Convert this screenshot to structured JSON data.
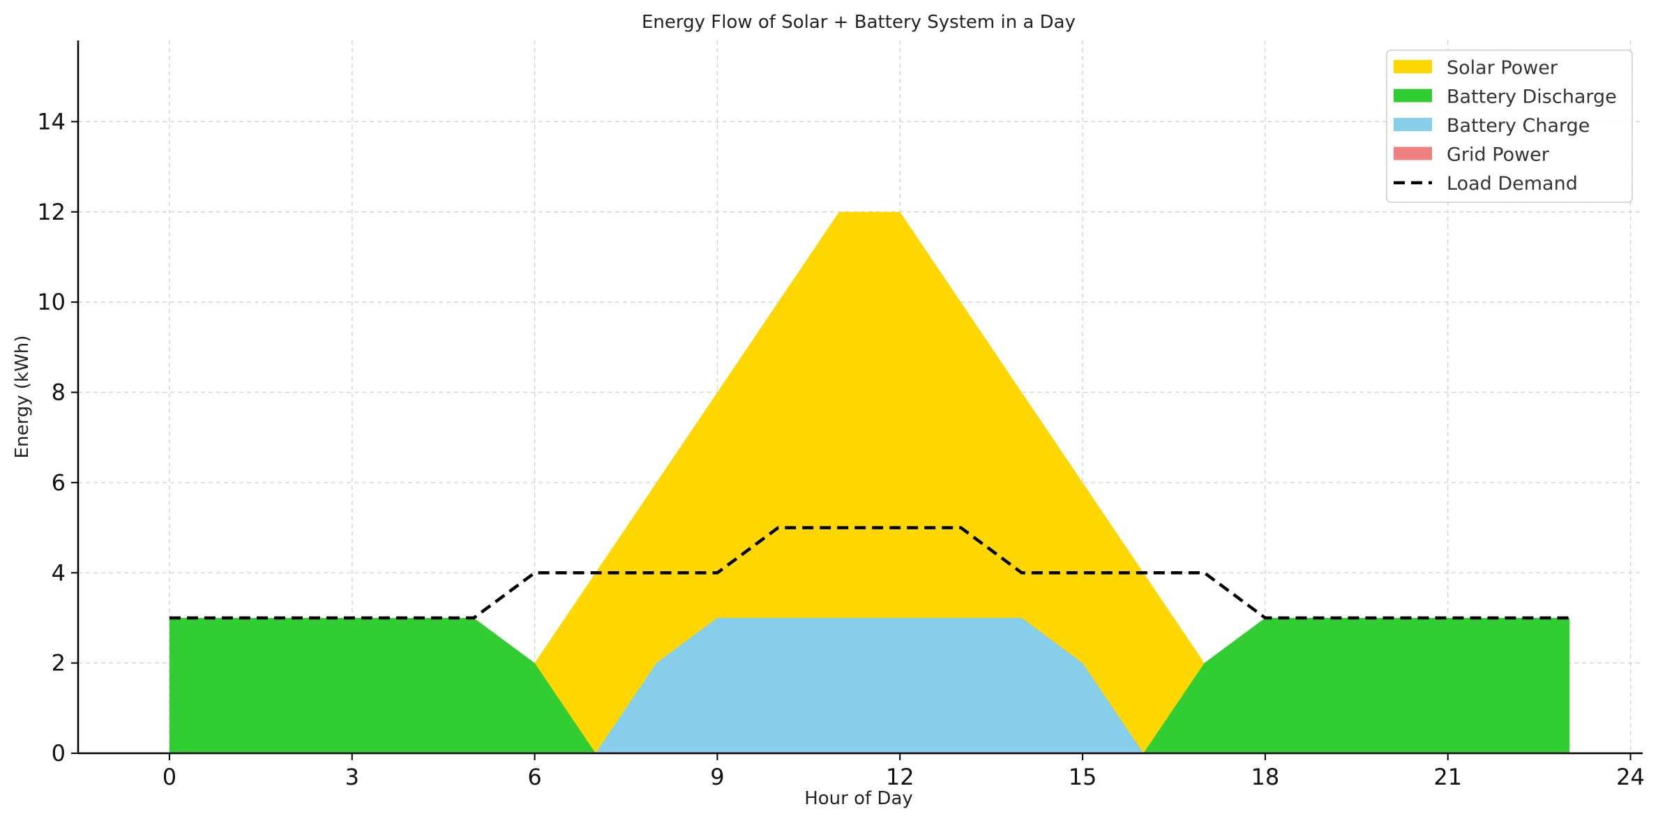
{
  "chart_data": {
    "type": "area",
    "title": "Energy Flow of Solar + Battery System in a Day",
    "xlabel": "Hour of Day",
    "ylabel": "Energy (kWh)",
    "xlim": [
      -1.5,
      24.2
    ],
    "ylim": [
      0,
      15.8
    ],
    "xticks": [
      0,
      3,
      6,
      9,
      12,
      15,
      18,
      21,
      24
    ],
    "yticks": [
      0,
      2,
      4,
      6,
      8,
      10,
      12,
      14
    ],
    "grid": true,
    "legend_position": "top-right",
    "x": [
      0,
      1,
      2,
      3,
      4,
      5,
      6,
      7,
      8,
      9,
      10,
      11,
      12,
      13,
      14,
      15,
      16,
      17,
      18,
      19,
      20,
      21,
      22,
      23
    ],
    "series": [
      {
        "name": "Solar Power",
        "color": "#FFD700",
        "kind": "area",
        "values": [
          0,
          0,
          0,
          0,
          0,
          0,
          2,
          4,
          6,
          8,
          10,
          12,
          12,
          10,
          8,
          6,
          4,
          2,
          0,
          0,
          0,
          0,
          0,
          0
        ]
      },
      {
        "name": "Battery Discharge",
        "color": "#32CD32",
        "kind": "area",
        "values": [
          3,
          3,
          3,
          3,
          3,
          3,
          2,
          0,
          0,
          0,
          0,
          0,
          0,
          0,
          0,
          0,
          0,
          2,
          3,
          3,
          3,
          3,
          3,
          3
        ]
      },
      {
        "name": "Battery Charge",
        "color": "#87CEEB",
        "kind": "area",
        "values": [
          0,
          0,
          0,
          0,
          0,
          0,
          0,
          0,
          2,
          3,
          3,
          3,
          3,
          3,
          3,
          2,
          0,
          0,
          0,
          0,
          0,
          0,
          0,
          0
        ]
      },
      {
        "name": "Grid Power",
        "color": "#F08080",
        "kind": "area",
        "values": [
          0,
          0,
          0,
          0,
          0,
          0,
          0,
          0,
          0,
          0,
          0,
          0,
          0,
          0,
          0,
          0,
          0,
          0,
          0,
          0,
          0,
          0,
          0,
          0
        ]
      },
      {
        "name": "Load Demand",
        "color": "#000000",
        "kind": "dashed-line",
        "values": [
          3,
          3,
          3,
          3,
          3,
          3,
          4,
          4,
          4,
          4,
          5,
          5,
          5,
          5,
          4,
          4,
          4,
          4,
          3,
          3,
          3,
          3,
          3,
          3
        ]
      }
    ]
  }
}
